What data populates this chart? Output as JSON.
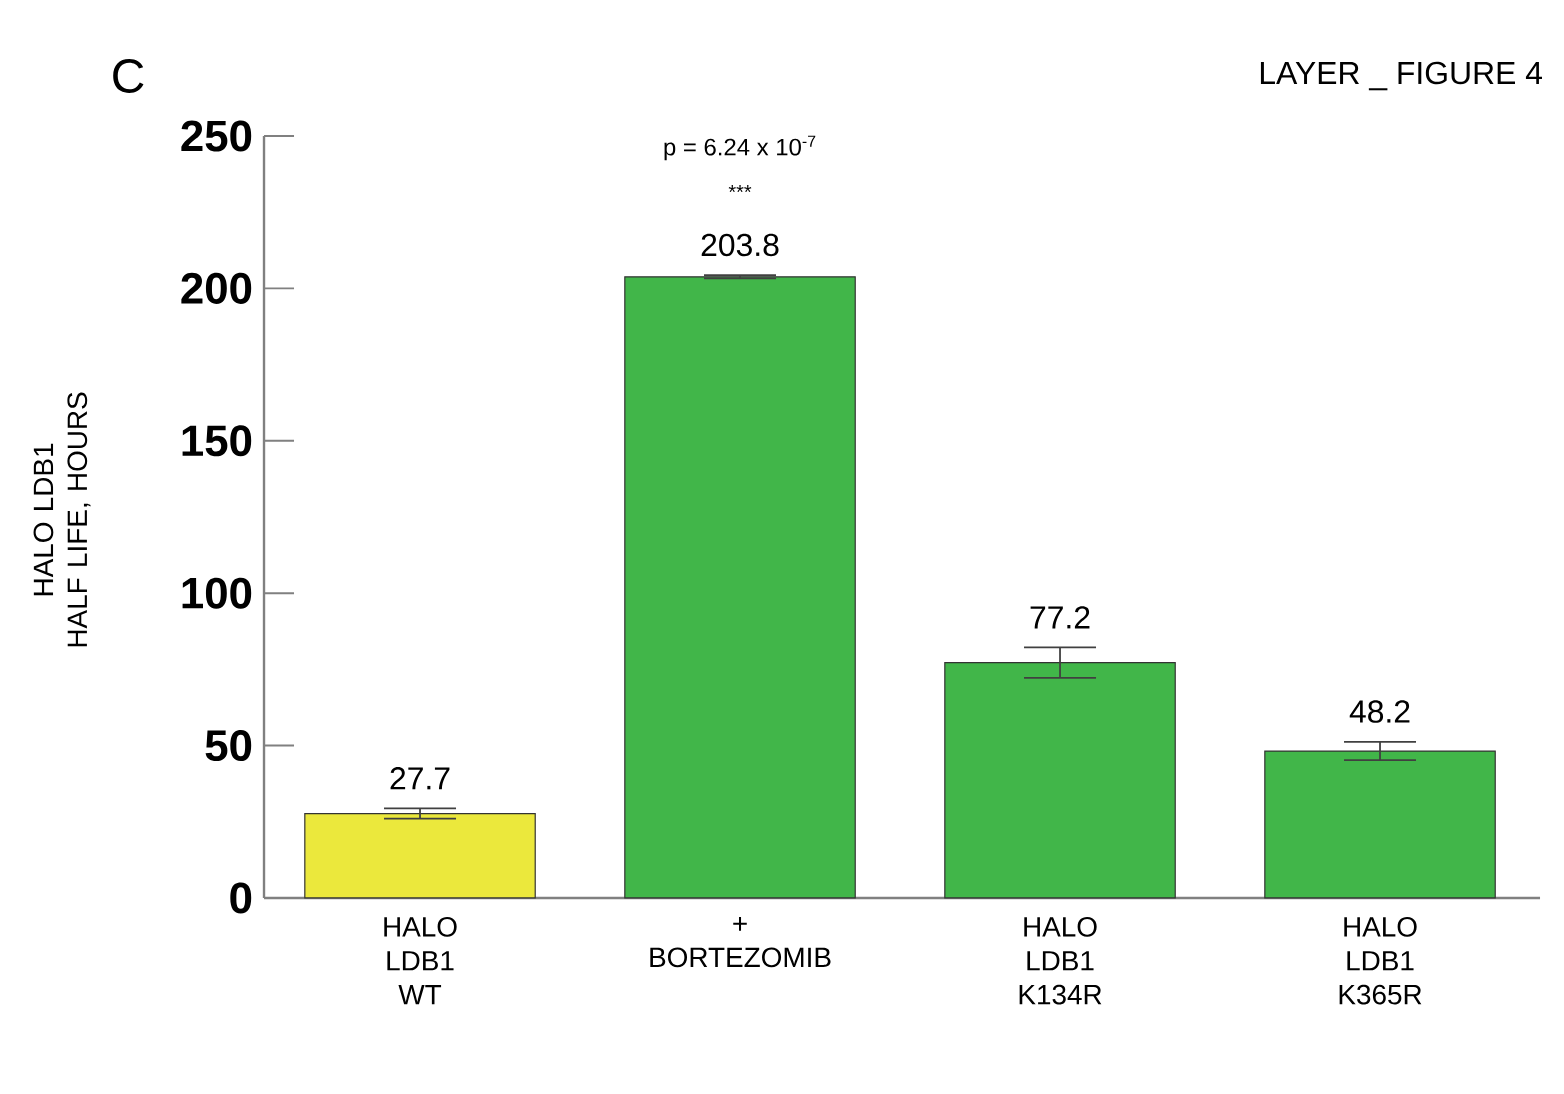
{
  "chart_data": {
    "type": "bar",
    "ylabel": "HALO LDB1 HALF LIFE, HOURS",
    "categories": [
      "HALO LDB1 WT",
      "+ BORTEZOMIB",
      "HALO LDB1 K134R",
      "HALO LDB1 K365R"
    ],
    "values": [
      27.7,
      203.8,
      77.2,
      48.2
    ],
    "errors": [
      1.7,
      0.5,
      5,
      3
    ],
    "colors": [
      "#ebe83c",
      "#41b649",
      "#41b649",
      "#41b649"
    ],
    "data_labels": true,
    "ylim": [
      0,
      250
    ],
    "yticks": [
      0,
      50,
      100,
      150,
      200,
      250
    ],
    "annotations": [
      "C",
      "LAYER _ FIGURE 4",
      "p = 6.24 x 10$^{-7}$",
      "***"
    ]
  }
}
